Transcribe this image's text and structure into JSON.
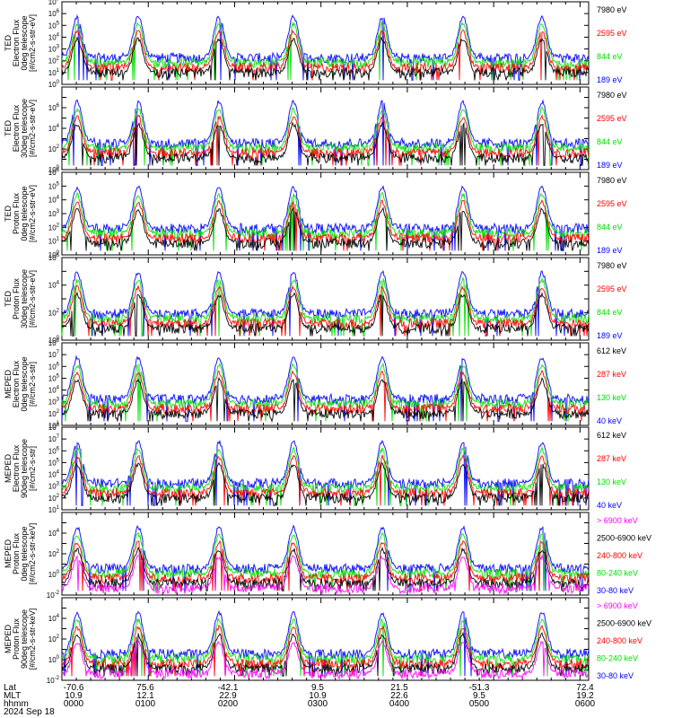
{
  "colors": {
    "blue": "#0000ff",
    "red": "#ff0000",
    "green": "#00e000",
    "black": "#000000",
    "magenta": "#ff00ff"
  },
  "chart_data": [
    {
      "type": "line",
      "ylabel": [
        "TED",
        "Electron Flux",
        "0deg telescope",
        "[#/cm2-s-str-eV]"
      ],
      "ylim": [
        1,
        10000000
      ],
      "log": true,
      "ytick_exp": [
        0,
        1,
        2,
        3,
        4,
        5,
        6,
        7
      ],
      "series": [
        {
          "name": "7980 eV",
          "color": "black"
        },
        {
          "name": "2595 eV",
          "color": "red"
        },
        {
          "name": "844 eV",
          "color": "green"
        },
        {
          "name": "189 eV",
          "color": "blue"
        }
      ]
    },
    {
      "type": "line",
      "ylabel": [
        "TED",
        "Electron Flux",
        "30deg telescope",
        "[#/cm2-s-str-eV]"
      ],
      "ylim": [
        1,
        100000000
      ],
      "log": true,
      "ytick_exp": [
        0,
        2,
        4,
        6
      ],
      "series": [
        {
          "name": "7980 eV",
          "color": "black"
        },
        {
          "name": "2595 eV",
          "color": "red"
        },
        {
          "name": "844 eV",
          "color": "green"
        },
        {
          "name": "189 eV",
          "color": "blue"
        }
      ]
    },
    {
      "type": "line",
      "ylabel": [
        "TED",
        "Proton Flux",
        "0deg telescope",
        "[#/cm2-s-str-eV]"
      ],
      "ylim": [
        1,
        1000000
      ],
      "log": true,
      "ytick_exp": [
        0,
        1,
        2,
        3,
        4,
        5,
        6
      ],
      "series": [
        {
          "name": "7980 eV",
          "color": "black"
        },
        {
          "name": "2595 eV",
          "color": "red"
        },
        {
          "name": "844 eV",
          "color": "green"
        },
        {
          "name": "189 eV",
          "color": "blue"
        }
      ]
    },
    {
      "type": "line",
      "ylabel": [
        "TED",
        "Proton Flux",
        "30deg telescope",
        "[#/cm2-s-str-eV]"
      ],
      "ylim": [
        1,
        1000000
      ],
      "log": true,
      "ytick_exp": [
        0,
        2,
        4,
        6
      ],
      "series": [
        {
          "name": "7980 eV",
          "color": "black"
        },
        {
          "name": "2595 eV",
          "color": "red"
        },
        {
          "name": "844 eV",
          "color": "green"
        },
        {
          "name": "189 eV",
          "color": "blue"
        }
      ]
    },
    {
      "type": "line",
      "ylabel": [
        "MEPED",
        "Electron Flux",
        "0deg telescope",
        "[#/cm2-s-str]"
      ],
      "ylim": [
        10,
        100000000
      ],
      "log": true,
      "ytick_exp": [
        1,
        2,
        3,
        4,
        5,
        6,
        7,
        8
      ],
      "series": [
        {
          "name": "612 keV",
          "color": "black"
        },
        {
          "name": "287 keV",
          "color": "red"
        },
        {
          "name": "130 keV",
          "color": "green"
        },
        {
          "name": "40 keV",
          "color": "blue"
        }
      ]
    },
    {
      "type": "line",
      "ylabel": [
        "MEPED",
        "Electron Flux",
        "90deg telescope",
        "[#/cm2-s-str]"
      ],
      "ylim": [
        10,
        100000000
      ],
      "log": true,
      "ytick_exp": [
        1,
        2,
        3,
        4,
        5,
        6,
        7,
        8
      ],
      "series": [
        {
          "name": "612 keV",
          "color": "black"
        },
        {
          "name": "287 keV",
          "color": "red"
        },
        {
          "name": "130 keV",
          "color": "green"
        },
        {
          "name": "40 keV",
          "color": "blue"
        }
      ]
    },
    {
      "type": "line",
      "ylabel": [
        "MEPED",
        "Proton Flux",
        "0deg telescope",
        "[#/cm2-s-str-keV]"
      ],
      "ylim": [
        0.01,
        1000000
      ],
      "log": true,
      "ytick_exp": [
        -2,
        0,
        2,
        4
      ],
      "series": [
        {
          "name": "> 6900 keV",
          "color": "magenta"
        },
        {
          "name": "2500-6900 keV",
          "color": "black"
        },
        {
          "name": "240-800 keV",
          "color": "red"
        },
        {
          "name": "80-240 keV",
          "color": "green"
        },
        {
          "name": "30-80 keV",
          "color": "blue"
        }
      ]
    },
    {
      "type": "line",
      "ylabel": [
        "MEPED",
        "Proton Flux",
        "90deg telescope",
        "[#/cm2-s-str-keV]"
      ],
      "ylim": [
        0.01,
        1000000
      ],
      "log": true,
      "ytick_exp": [
        -2,
        0,
        2,
        4
      ],
      "series": [
        {
          "name": "> 6900 keV",
          "color": "magenta"
        },
        {
          "name": "2500-6900 keV",
          "color": "black"
        },
        {
          "name": "240-800 keV",
          "color": "red"
        },
        {
          "name": "80-240 keV",
          "color": "green"
        },
        {
          "name": "30-80 keV",
          "color": "blue"
        }
      ]
    }
  ],
  "x_axis": {
    "row_labels": [
      "Lat",
      "MLT",
      "hhmm",
      "2024 Sep 18"
    ],
    "ticks": [
      {
        "lat": "-70.6",
        "mlt": "10.9",
        "hhmm": "0000"
      },
      {
        "lat": "75.6",
        "mlt": "12.1",
        "hhmm": "0100"
      },
      {
        "lat": "-42.1",
        "mlt": "22.9",
        "hhmm": "0200"
      },
      {
        "lat": "9.5",
        "mlt": "10.9",
        "hhmm": "0300"
      },
      {
        "lat": "21.5",
        "mlt": "22.6",
        "hhmm": "0400"
      },
      {
        "lat": "-51.3",
        "mlt": "9.5",
        "hhmm": "0500"
      },
      {
        "lat": "72.4",
        "mlt": "19.2",
        "hhmm": "0600"
      }
    ]
  }
}
